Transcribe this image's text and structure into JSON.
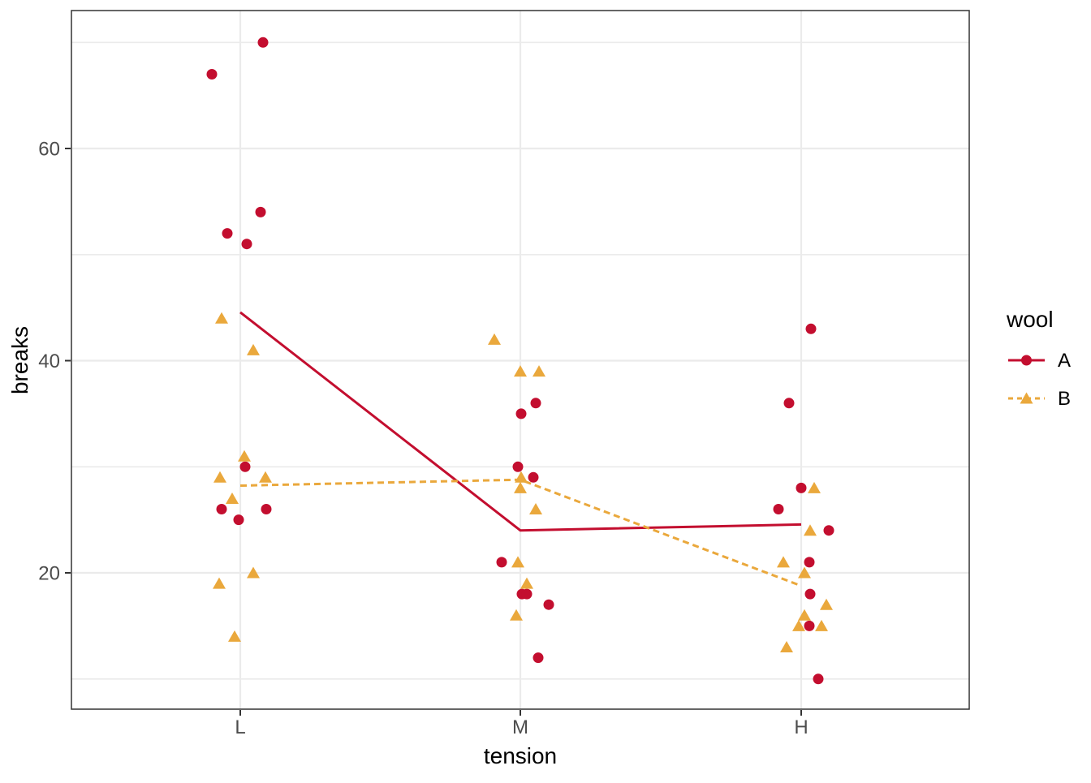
{
  "chart_data": {
    "type": "scatter",
    "title": "",
    "xlabel": "tension",
    "ylabel": "breaks",
    "x_categories": [
      "L",
      "M",
      "H"
    ],
    "y_ticks": [
      20,
      40,
      60
    ],
    "y_minor_ticks": [
      10,
      30,
      50,
      70
    ],
    "ylim": [
      7,
      73
    ],
    "grid": true,
    "legend_title": "wool",
    "legend_position": "right",
    "colors": {
      "wool_A": "#C30E2F",
      "wool_B": "#EAA83C",
      "grid": "#EBEBEB",
      "axis_text": "#4D4D4D",
      "panel_border": "#333333"
    },
    "series": [
      {
        "name": "A",
        "marker": "circle",
        "linetype": "solid",
        "color": "#C30E2F",
        "means": [
          {
            "tension": "L",
            "breaks": 44.56
          },
          {
            "tension": "M",
            "breaks": 24.0
          },
          {
            "tension": "H",
            "breaks": 24.56
          }
        ],
        "points": [
          {
            "tension": "L",
            "breaks": 70,
            "dx": 28
          },
          {
            "tension": "L",
            "breaks": 67,
            "dx": -35
          },
          {
            "tension": "L",
            "breaks": 54,
            "dx": 25
          },
          {
            "tension": "L",
            "breaks": 52,
            "dx": -16
          },
          {
            "tension": "L",
            "breaks": 51,
            "dx": 8
          },
          {
            "tension": "L",
            "breaks": 30,
            "dx": 6
          },
          {
            "tension": "L",
            "breaks": 26,
            "dx": -23
          },
          {
            "tension": "L",
            "breaks": 26,
            "dx": 32
          },
          {
            "tension": "L",
            "breaks": 25,
            "dx": -2
          },
          {
            "tension": "M",
            "breaks": 36,
            "dx": 19
          },
          {
            "tension": "M",
            "breaks": 35,
            "dx": 1
          },
          {
            "tension": "M",
            "breaks": 30,
            "dx": -3
          },
          {
            "tension": "M",
            "breaks": 29,
            "dx": 16
          },
          {
            "tension": "M",
            "breaks": 21,
            "dx": -23
          },
          {
            "tension": "M",
            "breaks": 18,
            "dx": 2
          },
          {
            "tension": "M",
            "breaks": 18,
            "dx": 8
          },
          {
            "tension": "M",
            "breaks": 17,
            "dx": 35
          },
          {
            "tension": "M",
            "breaks": 12,
            "dx": 22
          },
          {
            "tension": "H",
            "breaks": 43,
            "dx": 12
          },
          {
            "tension": "H",
            "breaks": 36,
            "dx": -15
          },
          {
            "tension": "H",
            "breaks": 28,
            "dx": 0
          },
          {
            "tension": "H",
            "breaks": 26,
            "dx": -28
          },
          {
            "tension": "H",
            "breaks": 24,
            "dx": 34
          },
          {
            "tension": "H",
            "breaks": 21,
            "dx": 10
          },
          {
            "tension": "H",
            "breaks": 18,
            "dx": 11
          },
          {
            "tension": "H",
            "breaks": 15,
            "dx": 10
          },
          {
            "tension": "H",
            "breaks": 10,
            "dx": 21
          }
        ]
      },
      {
        "name": "B",
        "marker": "triangle",
        "linetype": "dashed",
        "color": "#EAA83C",
        "means": [
          {
            "tension": "L",
            "breaks": 28.22
          },
          {
            "tension": "M",
            "breaks": 28.78
          },
          {
            "tension": "H",
            "breaks": 18.78
          }
        ],
        "points": [
          {
            "tension": "L",
            "breaks": 44,
            "dx": -23
          },
          {
            "tension": "L",
            "breaks": 41,
            "dx": 16
          },
          {
            "tension": "L",
            "breaks": 31,
            "dx": 5
          },
          {
            "tension": "L",
            "breaks": 29,
            "dx": -25
          },
          {
            "tension": "L",
            "breaks": 29,
            "dx": 31
          },
          {
            "tension": "L",
            "breaks": 27,
            "dx": -10
          },
          {
            "tension": "L",
            "breaks": 20,
            "dx": 16
          },
          {
            "tension": "L",
            "breaks": 19,
            "dx": -26
          },
          {
            "tension": "L",
            "breaks": 14,
            "dx": -7
          },
          {
            "tension": "M",
            "breaks": 42,
            "dx": -32
          },
          {
            "tension": "M",
            "breaks": 39,
            "dx": 0
          },
          {
            "tension": "M",
            "breaks": 39,
            "dx": 23
          },
          {
            "tension": "M",
            "breaks": 29,
            "dx": 1
          },
          {
            "tension": "M",
            "breaks": 28,
            "dx": 0
          },
          {
            "tension": "M",
            "breaks": 26,
            "dx": 19
          },
          {
            "tension": "M",
            "breaks": 21,
            "dx": -3
          },
          {
            "tension": "M",
            "breaks": 19,
            "dx": 8
          },
          {
            "tension": "M",
            "breaks": 16,
            "dx": -5
          },
          {
            "tension": "H",
            "breaks": 28,
            "dx": 16
          },
          {
            "tension": "H",
            "breaks": 24,
            "dx": 11
          },
          {
            "tension": "H",
            "breaks": 21,
            "dx": -22
          },
          {
            "tension": "H",
            "breaks": 20,
            "dx": 4
          },
          {
            "tension": "H",
            "breaks": 17,
            "dx": 31
          },
          {
            "tension": "H",
            "breaks": 16,
            "dx": 4
          },
          {
            "tension": "H",
            "breaks": 15,
            "dx": -3
          },
          {
            "tension": "H",
            "breaks": 15,
            "dx": 25
          },
          {
            "tension": "H",
            "breaks": 13,
            "dx": -18
          }
        ]
      }
    ]
  }
}
